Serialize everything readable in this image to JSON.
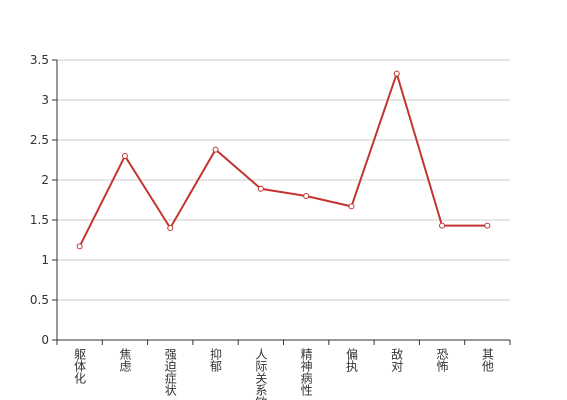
{
  "chart_data": {
    "type": "line",
    "categories": [
      "躯体化",
      "焦虑",
      "强迫症状",
      "抑郁",
      "人际关系敏感",
      "精神病性",
      "偏执",
      "敌对",
      "恐怖",
      "其他"
    ],
    "values": [
      1.17,
      2.3,
      1.4,
      2.38,
      1.89,
      1.8,
      1.67,
      3.33,
      1.43,
      1.43
    ],
    "color": "#c23531",
    "ylim": [
      0,
      3.5
    ],
    "yticks": [
      0,
      0.5,
      1,
      1.5,
      2,
      2.5,
      3,
      3.5
    ],
    "grid": true
  }
}
